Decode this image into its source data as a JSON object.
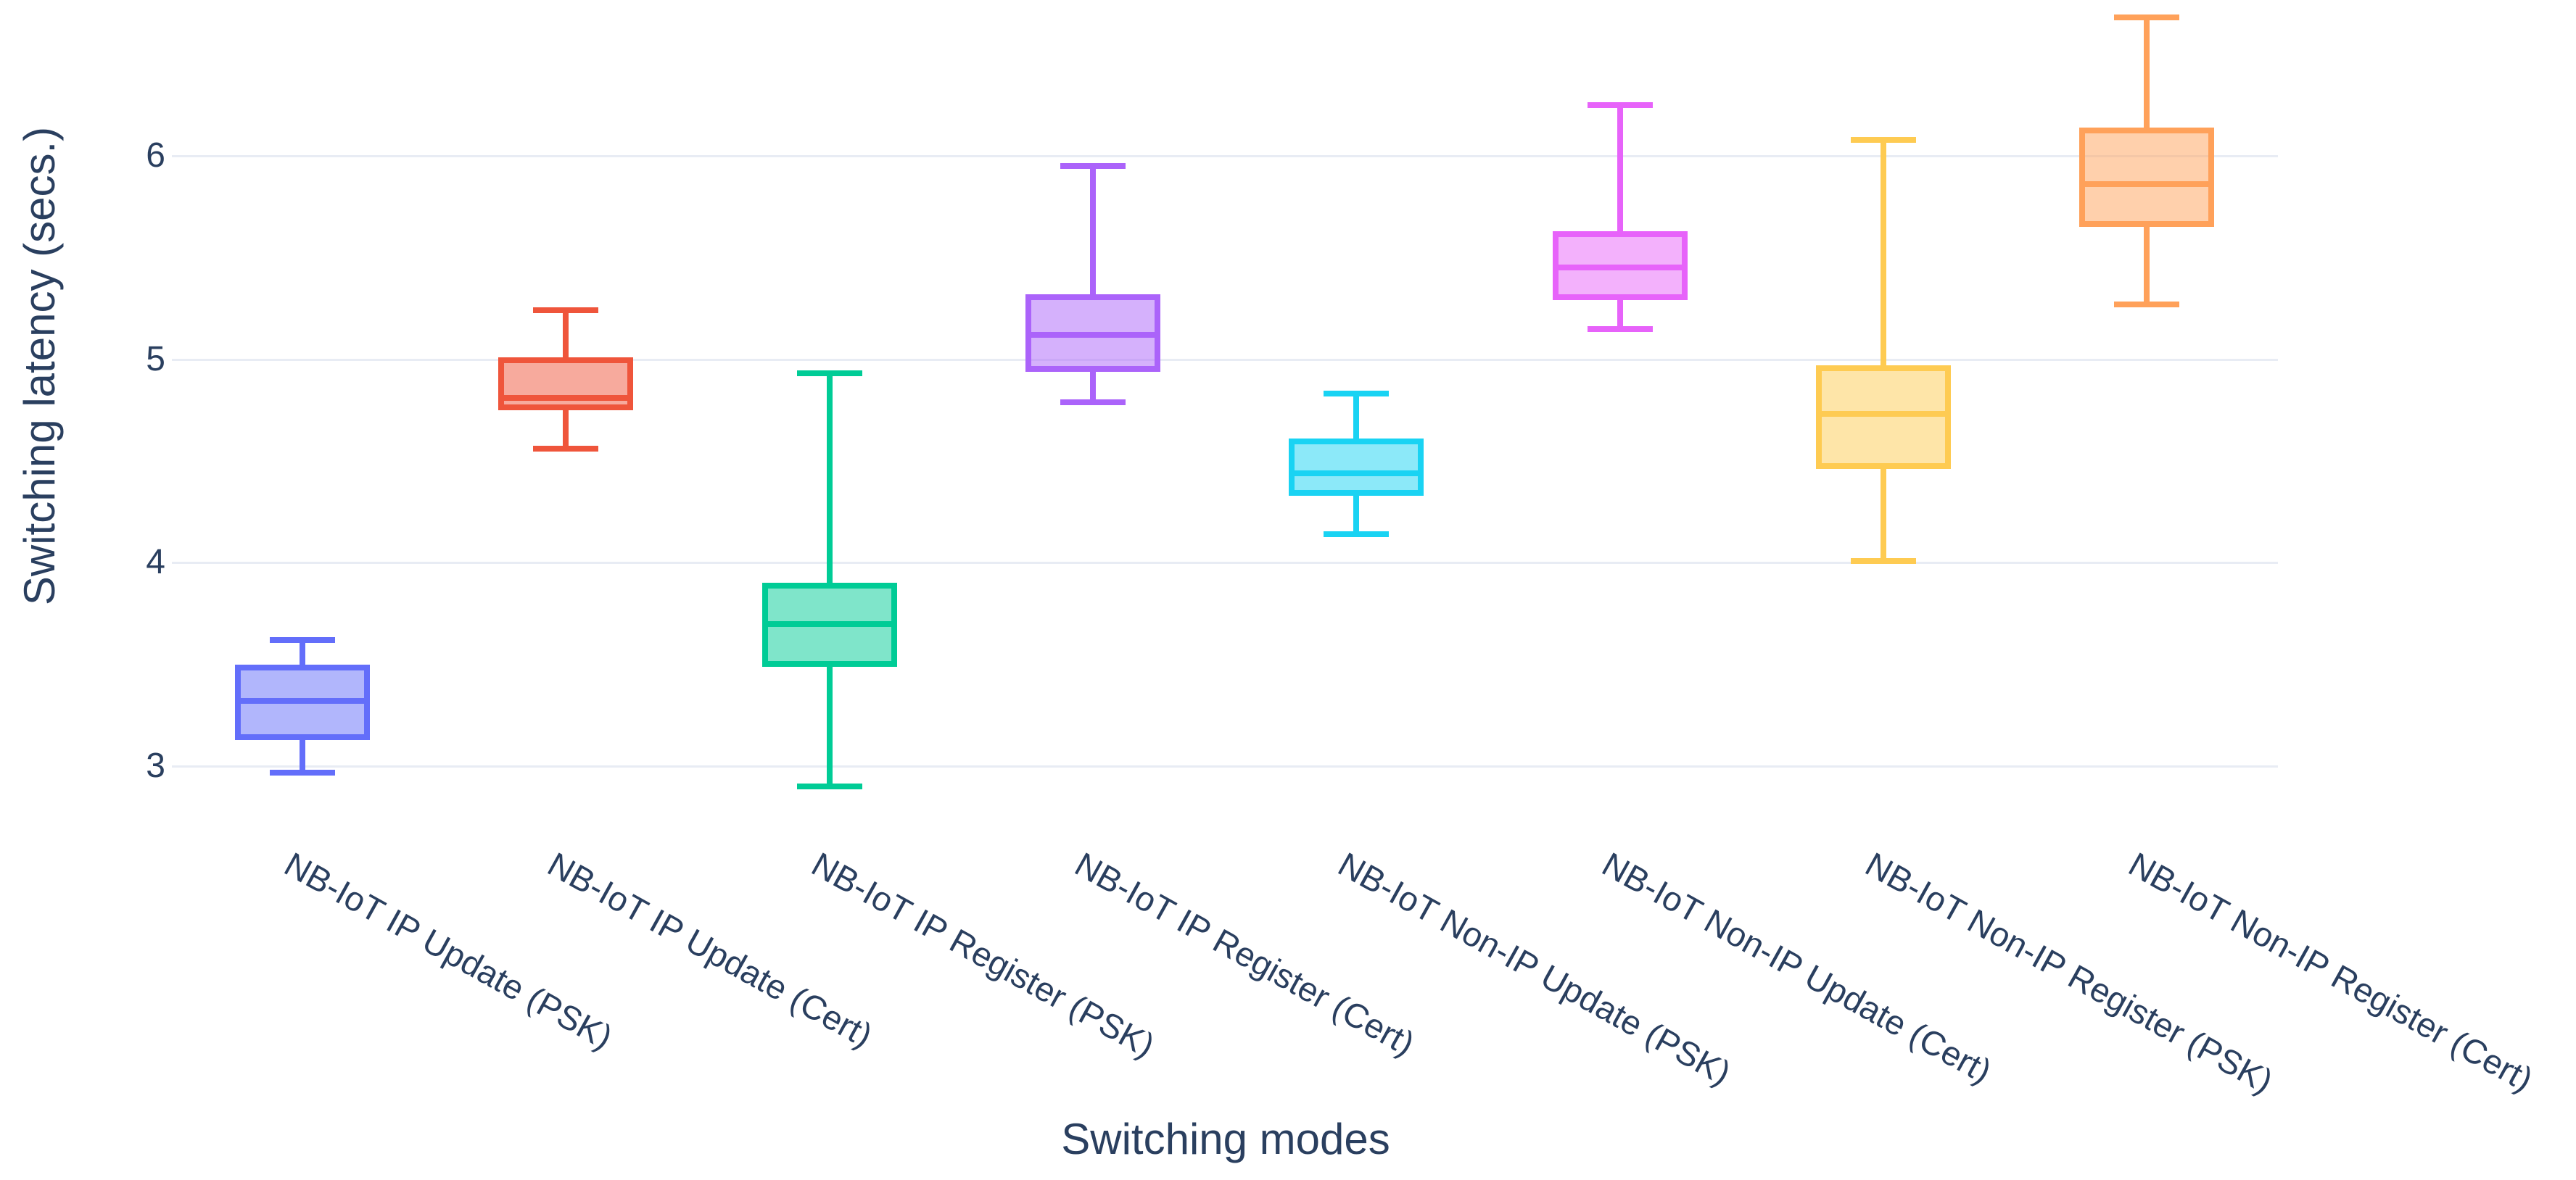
{
  "background": "#ffffff",
  "text_color": "#2a3f5f",
  "grid_color": "#e8ecf4",
  "chart_data": {
    "type": "box",
    "title": "",
    "xlabel": "Switching modes",
    "ylabel": "Switching latency (secs.)",
    "legend": "none",
    "grid": true,
    "orientation": "vertical",
    "y_ticks": [
      3,
      4,
      5,
      6
    ],
    "ylim": [
      2.85,
      6.77
    ],
    "categories": [
      "NB-IoT IP Update (PSK)",
      "NB-IoT IP Update (Cert)",
      "NB-IoT IP Register (PSK)",
      "NB-IoT IP Register (Cert)",
      "NB-IoT Non-IP Update (PSK)",
      "NB-IoT Non-IP Update (Cert)",
      "NB-IoT Non-IP Register (PSK)",
      "NB-IoT Non-IP Register (Cert)"
    ],
    "series": [
      {
        "name": "NB-IoT IP Update (PSK)",
        "color": "#636efa",
        "fill_rgba": "rgba(99,110,250,0.5)",
        "stats": {
          "min": 2.97,
          "q1": 3.13,
          "median": 3.32,
          "q3": 3.5,
          "max": 3.62
        }
      },
      {
        "name": "NB-IoT IP Update (Cert)",
        "color": "#ef553b",
        "fill_rgba": "rgba(239,85,59,0.5)",
        "stats": {
          "min": 4.56,
          "q1": 4.75,
          "median": 4.81,
          "q3": 5.01,
          "max": 5.24
        }
      },
      {
        "name": "NB-IoT IP Register (PSK)",
        "color": "#00cc96",
        "fill_rgba": "rgba(0,204,150,0.5)",
        "stats": {
          "min": 2.9,
          "q1": 3.49,
          "median": 3.7,
          "q3": 3.9,
          "max": 4.93
        }
      },
      {
        "name": "NB-IoT IP Register (Cert)",
        "color": "#ab63fa",
        "fill_rgba": "rgba(171,99,250,0.5)",
        "stats": {
          "min": 4.79,
          "q1": 4.94,
          "median": 5.12,
          "q3": 5.32,
          "max": 5.95
        }
      },
      {
        "name": "NB-IoT Non-IP Update (PSK)",
        "color": "#19d3f3",
        "fill_rgba": "rgba(25,211,243,0.5)",
        "stats": {
          "min": 4.14,
          "q1": 4.33,
          "median": 4.44,
          "q3": 4.61,
          "max": 4.83
        }
      },
      {
        "name": "NB-IoT Non-IP Update (Cert)",
        "color": "#e763fa",
        "fill_rgba": "rgba(231,99,250,0.5)",
        "stats": {
          "min": 5.15,
          "q1": 5.29,
          "median": 5.45,
          "q3": 5.63,
          "max": 6.25
        }
      },
      {
        "name": "NB-IoT Non-IP Register (PSK)",
        "color": "#fecb52",
        "fill_rgba": "rgba(254,203,82,0.5)",
        "stats": {
          "min": 4.01,
          "q1": 4.46,
          "median": 4.73,
          "q3": 4.97,
          "max": 6.08
        }
      },
      {
        "name": "NB-IoT Non-IP Register (Cert)",
        "color": "#ffa15a",
        "fill_rgba": "rgba(255,161,90,0.5)",
        "stats": {
          "min": 5.27,
          "q1": 5.65,
          "median": 5.86,
          "q3": 6.14,
          "max": 6.68
        }
      }
    ]
  }
}
